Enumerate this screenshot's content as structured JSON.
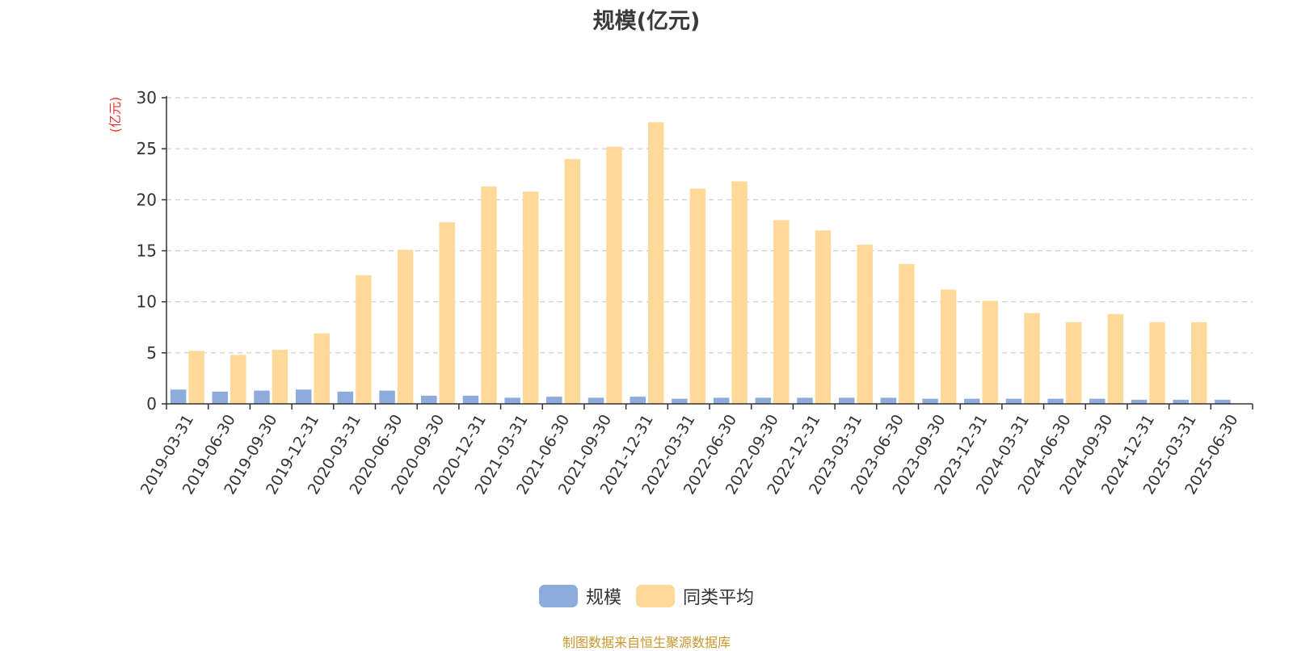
{
  "chart_data": {
    "type": "bar",
    "title": "规模(亿元)",
    "ylabel": "(亿元)",
    "xlabel": "",
    "ylim": [
      0,
      30
    ],
    "yticks": [
      0,
      5,
      10,
      15,
      20,
      25,
      30
    ],
    "grid": true,
    "legend_position": "bottom",
    "categories": [
      "2019-03-31",
      "2019-06-30",
      "2019-09-30",
      "2019-12-31",
      "2020-03-31",
      "2020-06-30",
      "2020-09-30",
      "2020-12-31",
      "2021-03-31",
      "2021-06-30",
      "2021-09-30",
      "2021-12-31",
      "2022-03-31",
      "2022-06-30",
      "2022-09-30",
      "2022-12-31",
      "2023-03-31",
      "2023-06-30",
      "2023-09-30",
      "2023-12-31",
      "2024-03-31",
      "2024-06-30",
      "2024-09-30",
      "2024-12-31",
      "2025-03-31",
      "2025-06-30"
    ],
    "series": [
      {
        "name": "规模",
        "color": "#8eacdb",
        "values": [
          1.4,
          1.2,
          1.3,
          1.4,
          1.2,
          1.3,
          0.8,
          0.8,
          0.6,
          0.7,
          0.6,
          0.7,
          0.5,
          0.6,
          0.6,
          0.6,
          0.6,
          0.6,
          0.5,
          0.5,
          0.5,
          0.5,
          0.5,
          0.4,
          0.4,
          0.4
        ]
      },
      {
        "name": "同类平均",
        "color": "#ffd999",
        "values": [
          5.2,
          4.8,
          5.3,
          6.9,
          12.6,
          15.1,
          17.8,
          21.3,
          20.8,
          24.0,
          25.2,
          27.6,
          21.1,
          21.8,
          18.0,
          17.0,
          15.6,
          13.7,
          11.2,
          10.1,
          8.9,
          8.0,
          8.8,
          8.0,
          8.0,
          null
        ]
      }
    ]
  },
  "source_note": "制图数据来自恒生聚源数据库"
}
